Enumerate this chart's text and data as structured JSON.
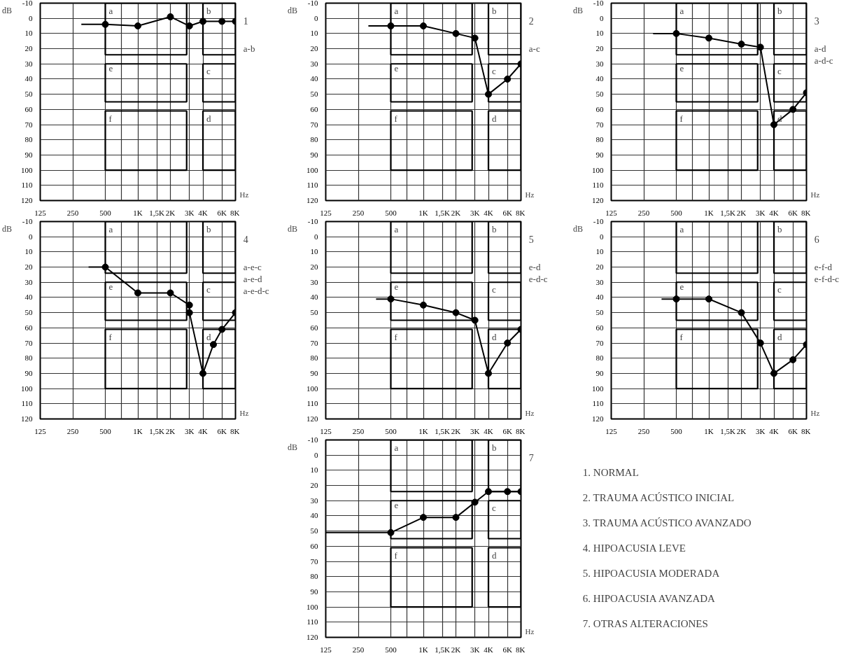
{
  "chart_data": [
    {
      "type": "line",
      "title": "1",
      "xlabel": "Hz",
      "ylabel": "dB",
      "log": "x",
      "grid": true,
      "marker": "circle",
      "line_style": "solid",
      "xlim": [
        125,
        8000
      ],
      "ylim": [
        120,
        -10
      ],
      "xticks": [
        125,
        250,
        500,
        {
          "value": 707,
          "label": null
        },
        {
          "value": 1000,
          "label": "1K"
        },
        {
          "value": 1500,
          "label": "1,5K"
        },
        {
          "value": 2000,
          "label": "2K"
        },
        {
          "value": 3000,
          "label": "3K"
        },
        {
          "value": 4000,
          "label": "4K"
        },
        {
          "value": 6000,
          "label": "6K"
        },
        {
          "value": 8000,
          "label": "8K"
        }
      ],
      "yticks": [
        -10,
        0,
        10,
        20,
        30,
        40,
        50,
        60,
        70,
        80,
        90,
        100,
        110,
        120
      ],
      "series": [
        {
          "color": "#000000",
          "x": [
            500,
            1000,
            2000,
            3000,
            4000,
            6000,
            8000
          ],
          "values": [
            4,
            5,
            -1,
            5,
            2,
            2,
            2
          ]
        },
        {
          "type": "line",
          "marker": "none",
          "color": "#000000",
          "x": [
            300,
            500
          ],
          "values": [
            4,
            4
          ]
        }
      ],
      "annotations": [
        "a",
        "b",
        "c",
        "d",
        "e",
        "f",
        "a-b"
      ]
    },
    {
      "type": "line",
      "title": "2",
      "xlabel": "Hz",
      "ylabel": "dB",
      "log": "x",
      "grid": true,
      "marker": "circle",
      "line_style": "solid",
      "xlim": [
        125,
        8000
      ],
      "ylim": [
        120,
        -10
      ],
      "xticks": [
        125,
        250,
        500,
        {
          "value": 707,
          "label": null
        },
        {
          "value": 1000,
          "label": "1K"
        },
        {
          "value": 1500,
          "label": "1,5K"
        },
        {
          "value": 2000,
          "label": "2K"
        },
        {
          "value": 3000,
          "label": "3K"
        },
        {
          "value": 4000,
          "label": "4K"
        },
        {
          "value": 6000,
          "label": "6K"
        },
        {
          "value": 8000,
          "label": "8K"
        }
      ],
      "yticks": [
        -10,
        0,
        10,
        20,
        30,
        40,
        50,
        60,
        70,
        80,
        90,
        100,
        110,
        120
      ],
      "series": [
        {
          "color": "#000000",
          "x": [
            500,
            1000,
            2000,
            3000,
            4000,
            6000,
            8000
          ],
          "values": [
            5,
            5,
            10,
            13,
            50,
            40,
            30
          ]
        },
        {
          "type": "line",
          "marker": "none",
          "color": "#000000",
          "x": [
            310,
            500
          ],
          "values": [
            5,
            5
          ]
        }
      ],
      "annotations": [
        "a",
        "b",
        "c",
        "d",
        "e",
        "f",
        "a-c"
      ]
    },
    {
      "type": "line",
      "title": "3",
      "xlabel": "Hz",
      "ylabel": "dB",
      "log": "x",
      "grid": true,
      "marker": "circle",
      "line_style": "solid",
      "xlim": [
        125,
        8000
      ],
      "ylim": [
        120,
        -10
      ],
      "xticks": [
        125,
        250,
        500,
        {
          "value": 707,
          "label": null
        },
        {
          "value": 1000,
          "label": "1K"
        },
        {
          "value": 1500,
          "label": "1,5K"
        },
        {
          "value": 2000,
          "label": "2K"
        },
        {
          "value": 3000,
          "label": "3K"
        },
        {
          "value": 4000,
          "label": "4K"
        },
        {
          "value": 6000,
          "label": "6K"
        },
        {
          "value": 8000,
          "label": "8K"
        }
      ],
      "yticks": [
        -10,
        0,
        10,
        20,
        30,
        40,
        50,
        60,
        70,
        80,
        90,
        100,
        110,
        120
      ],
      "series": [
        {
          "color": "#000000",
          "x": [
            500,
            1000,
            2000,
            3000,
            4000,
            6000,
            8000
          ],
          "values": [
            10,
            13,
            17,
            19,
            70,
            60,
            49
          ]
        },
        {
          "type": "line",
          "marker": "none",
          "color": "#000000",
          "x": [
            305,
            500
          ],
          "values": [
            10,
            10
          ]
        }
      ],
      "annotations": [
        "a",
        "b",
        "c",
        "d",
        "e",
        "f",
        "a-d",
        "a-d-c"
      ]
    },
    {
      "type": "line",
      "title": "4",
      "xlabel": "Hz",
      "ylabel": "dB",
      "log": "x",
      "grid": true,
      "marker": "circle",
      "line_style": "solid",
      "xlim": [
        125,
        8000
      ],
      "ylim": [
        120,
        -10
      ],
      "xticks": [
        125,
        250,
        500,
        {
          "value": 707,
          "label": null
        },
        {
          "value": 1000,
          "label": "1K"
        },
        {
          "value": 1500,
          "label": "1,5K"
        },
        {
          "value": 2000,
          "label": "2K"
        },
        {
          "value": 3000,
          "label": "3K"
        },
        {
          "value": 4000,
          "label": "4K"
        },
        {
          "value": 6000,
          "label": "6K"
        },
        {
          "value": 8000,
          "label": "8K"
        }
      ],
      "yticks": [
        -10,
        0,
        10,
        20,
        30,
        40,
        50,
        60,
        70,
        80,
        90,
        100,
        110,
        120
      ],
      "series": [
        {
          "color": "#000000",
          "x": [
            500,
            1000,
            2000,
            3000,
            3000,
            4000,
            5000,
            6000,
            8000
          ],
          "values": [
            20,
            37,
            37,
            45,
            50,
            90,
            71,
            61,
            50
          ]
        },
        {
          "type": "line",
          "marker": "none",
          "color": "#000000",
          "x": [
            350,
            500
          ],
          "values": [
            20,
            20
          ]
        }
      ],
      "annotations": [
        "a",
        "b",
        "c",
        "d",
        "e",
        "f",
        "a-e-c",
        "a-e-d",
        "a-e-d-c"
      ]
    },
    {
      "type": "line",
      "title": "5",
      "xlabel": "Hz",
      "ylabel": "dB",
      "log": "x",
      "grid": true,
      "marker": "circle",
      "line_style": "solid",
      "xlim": [
        125,
        8000
      ],
      "ylim": [
        120,
        -10
      ],
      "xticks": [
        125,
        250,
        500,
        {
          "value": 707,
          "label": null
        },
        {
          "value": 1000,
          "label": "1K"
        },
        {
          "value": 1500,
          "label": "1,5K"
        },
        {
          "value": 2000,
          "label": "2K"
        },
        {
          "value": 3000,
          "label": "3K"
        },
        {
          "value": 4000,
          "label": "4K"
        },
        {
          "value": 6000,
          "label": "6K"
        },
        {
          "value": 8000,
          "label": "8K"
        }
      ],
      "yticks": [
        -10,
        0,
        10,
        20,
        30,
        40,
        50,
        60,
        70,
        80,
        90,
        100,
        110,
        120
      ],
      "series": [
        {
          "color": "#000000",
          "x": [
            500,
            1000,
            2000,
            3000,
            4000,
            6000,
            8000
          ],
          "values": [
            41,
            45,
            50,
            55,
            90,
            70,
            61
          ]
        },
        {
          "type": "line",
          "marker": "none",
          "color": "#000000",
          "x": [
            365,
            500
          ],
          "values": [
            41,
            41
          ]
        }
      ],
      "annotations": [
        "a",
        "b",
        "c",
        "d",
        "e",
        "f",
        "e-d",
        "e-d-c"
      ]
    },
    {
      "type": "line",
      "title": "6",
      "xlabel": "Hz",
      "ylabel": "dB",
      "log": "x",
      "grid": true,
      "marker": "circle",
      "line_style": "solid",
      "xlim": [
        125,
        8000
      ],
      "ylim": [
        120,
        -10
      ],
      "xticks": [
        125,
        250,
        500,
        {
          "value": 707,
          "label": null
        },
        {
          "value": 1000,
          "label": "1K"
        },
        {
          "value": 1500,
          "label": "1,5K"
        },
        {
          "value": 2000,
          "label": "2K"
        },
        {
          "value": 3000,
          "label": "3K"
        },
        {
          "value": 4000,
          "label": "4K"
        },
        {
          "value": 6000,
          "label": "6K"
        },
        {
          "value": 8000,
          "label": "8K"
        }
      ],
      "yticks": [
        -10,
        0,
        10,
        20,
        30,
        40,
        50,
        60,
        70,
        80,
        90,
        100,
        110,
        120
      ],
      "series": [
        {
          "color": "#000000",
          "x": [
            500,
            1000,
            2000,
            3000,
            4000,
            6000,
            8000
          ],
          "values": [
            41,
            41,
            50,
            70,
            90,
            81,
            71
          ]
        },
        {
          "type": "line",
          "marker": "none",
          "color": "#000000",
          "x": [
            365,
            500
          ],
          "values": [
            41,
            41
          ]
        }
      ],
      "annotations": [
        "a",
        "b",
        "c",
        "d",
        "e",
        "f",
        "e-f-d",
        "e-f-d-c"
      ]
    },
    {
      "type": "line",
      "title": "7",
      "xlabel": "Hz",
      "ylabel": "dB",
      "log": "x",
      "grid": true,
      "marker": "circle",
      "line_style": "solid",
      "xlim": [
        125,
        8000
      ],
      "ylim": [
        120,
        -10
      ],
      "xticks": [
        125,
        250,
        500,
        {
          "value": 707,
          "label": null
        },
        {
          "value": 1000,
          "label": "1K"
        },
        {
          "value": 1500,
          "label": "1,5K"
        },
        {
          "value": 2000,
          "label": "2K"
        },
        {
          "value": 3000,
          "label": "3K"
        },
        {
          "value": 4000,
          "label": "4K"
        },
        {
          "value": 6000,
          "label": "6K"
        },
        {
          "value": 8000,
          "label": "8K"
        }
      ],
      "yticks": [
        -10,
        0,
        10,
        20,
        30,
        40,
        50,
        60,
        70,
        80,
        90,
        100,
        110,
        120
      ],
      "series": [
        {
          "color": "#000000",
          "x": [
            500,
            1000,
            2000,
            3000,
            4000,
            6000,
            8000
          ],
          "values": [
            51,
            41,
            41,
            31,
            24,
            24,
            24
          ]
        },
        {
          "type": "line",
          "marker": "none",
          "color": "#000000",
          "x": [
            125,
            500
          ],
          "values": [
            51,
            51
          ]
        }
      ],
      "annotations": [
        "a",
        "b",
        "c",
        "d",
        "e",
        "f"
      ]
    },
    {
      "type": "other",
      "annotations": [
        "1. NORMAL",
        "2. TRAUMA ACÚSTICO INICIAL",
        "3. TRAUMA ACÚSTICO AVANZADO",
        "4. HIPOACUSIA LEVE",
        "5. HIPOACUSIA MODERADA",
        "6. HIPOACUSIA AVANZADA",
        "7. OTRAS ALTERACIONES"
      ]
    }
  ]
}
